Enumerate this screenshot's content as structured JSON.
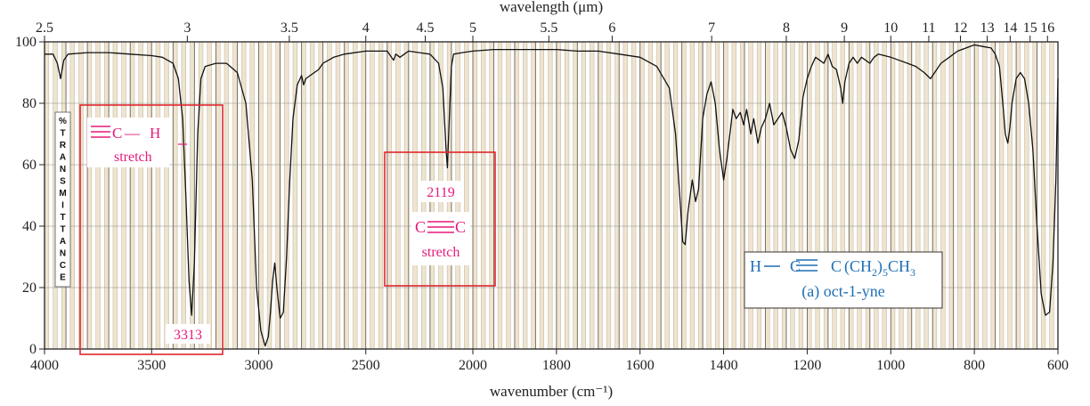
{
  "chart_data": {
    "type": "line",
    "title": "",
    "top_axis": {
      "label": "wavelength (μm)",
      "ticks": [
        "2.5",
        "3",
        "3.5",
        "4",
        "4.5",
        "5",
        "5.5",
        "6",
        "7",
        "8",
        "9",
        "10",
        "11",
        "12",
        "13",
        "14",
        "15",
        "16"
      ],
      "tick_values_um": [
        2.5,
        3,
        3.5,
        4,
        4.5,
        5,
        5.5,
        6,
        7,
        8,
        9,
        10,
        11,
        12,
        13,
        14,
        15,
        16
      ]
    },
    "x_axis": {
      "label": "wavenumber (cm⁻¹)",
      "ticks": [
        "4000",
        "3500",
        "3000",
        "2500",
        "2000",
        "1800",
        "1600",
        "1400",
        "1200",
        "1000",
        "800",
        "600"
      ],
      "tick_values": [
        4000,
        3500,
        3000,
        2500,
        2000,
        1800,
        1600,
        1400,
        1200,
        1000,
        800,
        600
      ],
      "scale": "linear 4000–2000, expanded linear 2000–600"
    },
    "y_axis": {
      "label_letters": [
        "%",
        "T",
        "R",
        "A",
        "N",
        "S",
        "M",
        "I",
        "T",
        "T",
        "A",
        "N",
        "C",
        "E"
      ],
      "ticks": [
        "0",
        "20",
        "40",
        "60",
        "80",
        "100"
      ],
      "tick_values": [
        0,
        20,
        40,
        60,
        80,
        100
      ],
      "ylim": [
        0,
        100
      ]
    },
    "grid": true,
    "series": [
      {
        "points": [
          [
            4000,
            96
          ],
          [
            3960,
            96
          ],
          [
            3940,
            93
          ],
          [
            3925,
            88
          ],
          [
            3910,
            94
          ],
          [
            3890,
            96
          ],
          [
            3800,
            96.5
          ],
          [
            3700,
            96.5
          ],
          [
            3600,
            96
          ],
          [
            3500,
            95.5
          ],
          [
            3450,
            95
          ],
          [
            3400,
            93
          ],
          [
            3375,
            88
          ],
          [
            3355,
            75
          ],
          [
            3340,
            50
          ],
          [
            3325,
            22
          ],
          [
            3313,
            11
          ],
          [
            3300,
            28
          ],
          [
            3285,
            70
          ],
          [
            3270,
            88
          ],
          [
            3250,
            92
          ],
          [
            3200,
            93
          ],
          [
            3150,
            93
          ],
          [
            3100,
            90
          ],
          [
            3060,
            80
          ],
          [
            3030,
            55
          ],
          [
            3010,
            20
          ],
          [
            2990,
            6
          ],
          [
            2970,
            1
          ],
          [
            2955,
            4
          ],
          [
            2945,
            12
          ],
          [
            2935,
            22
          ],
          [
            2925,
            28
          ],
          [
            2915,
            20
          ],
          [
            2900,
            10
          ],
          [
            2885,
            12
          ],
          [
            2870,
            30
          ],
          [
            2855,
            55
          ],
          [
            2840,
            75
          ],
          [
            2820,
            86
          ],
          [
            2800,
            89
          ],
          [
            2790,
            86
          ],
          [
            2780,
            88
          ],
          [
            2760,
            89
          ],
          [
            2720,
            91
          ],
          [
            2700,
            93
          ],
          [
            2650,
            95
          ],
          [
            2600,
            96
          ],
          [
            2500,
            97
          ],
          [
            2450,
            97
          ],
          [
            2400,
            97
          ],
          [
            2380,
            95
          ],
          [
            2370,
            94
          ],
          [
            2360,
            96
          ],
          [
            2340,
            95
          ],
          [
            2320,
            96
          ],
          [
            2300,
            97
          ],
          [
            2250,
            96.5
          ],
          [
            2200,
            96
          ],
          [
            2160,
            93
          ],
          [
            2140,
            85
          ],
          [
            2125,
            65
          ],
          [
            2119,
            59
          ],
          [
            2112,
            72
          ],
          [
            2100,
            92
          ],
          [
            2090,
            96
          ],
          [
            2050,
            96.5
          ],
          [
            2000,
            97
          ],
          [
            1950,
            97.5
          ],
          [
            1900,
            97.5
          ],
          [
            1850,
            97.5
          ],
          [
            1800,
            97.5
          ],
          [
            1750,
            97
          ],
          [
            1700,
            97
          ],
          [
            1650,
            96
          ],
          [
            1600,
            95
          ],
          [
            1560,
            92
          ],
          [
            1530,
            85
          ],
          [
            1515,
            70
          ],
          [
            1505,
            50
          ],
          [
            1498,
            35
          ],
          [
            1492,
            34
          ],
          [
            1485,
            45
          ],
          [
            1475,
            55
          ],
          [
            1467,
            48
          ],
          [
            1460,
            52
          ],
          [
            1450,
            75
          ],
          [
            1440,
            83
          ],
          [
            1430,
            87
          ],
          [
            1420,
            80
          ],
          [
            1410,
            65
          ],
          [
            1400,
            55
          ],
          [
            1392,
            62
          ],
          [
            1385,
            70
          ],
          [
            1378,
            78
          ],
          [
            1370,
            75
          ],
          [
            1360,
            77
          ],
          [
            1352,
            73
          ],
          [
            1345,
            78
          ],
          [
            1335,
            70
          ],
          [
            1328,
            75
          ],
          [
            1318,
            67
          ],
          [
            1310,
            72
          ],
          [
            1300,
            75
          ],
          [
            1290,
            80
          ],
          [
            1280,
            73
          ],
          [
            1270,
            75
          ],
          [
            1260,
            77
          ],
          [
            1250,
            72
          ],
          [
            1240,
            65
          ],
          [
            1230,
            62
          ],
          [
            1220,
            68
          ],
          [
            1210,
            82
          ],
          [
            1200,
            88
          ],
          [
            1190,
            92
          ],
          [
            1180,
            95
          ],
          [
            1170,
            94
          ],
          [
            1160,
            93
          ],
          [
            1150,
            96
          ],
          [
            1140,
            92
          ],
          [
            1130,
            91
          ],
          [
            1120,
            85
          ],
          [
            1115,
            80
          ],
          [
            1110,
            87
          ],
          [
            1100,
            93
          ],
          [
            1090,
            95
          ],
          [
            1080,
            93
          ],
          [
            1070,
            95
          ],
          [
            1060,
            94
          ],
          [
            1050,
            93
          ],
          [
            1040,
            95
          ],
          [
            1030,
            96
          ],
          [
            1000,
            95
          ],
          [
            980,
            94
          ],
          [
            960,
            93
          ],
          [
            940,
            92
          ],
          [
            920,
            90
          ],
          [
            905,
            88
          ],
          [
            895,
            90
          ],
          [
            880,
            93
          ],
          [
            860,
            95
          ],
          [
            840,
            97
          ],
          [
            820,
            98
          ],
          [
            800,
            99
          ],
          [
            780,
            98.5
          ],
          [
            760,
            98
          ],
          [
            750,
            96
          ],
          [
            740,
            92
          ],
          [
            732,
            80
          ],
          [
            726,
            70
          ],
          [
            720,
            67
          ],
          [
            715,
            72
          ],
          [
            710,
            80
          ],
          [
            700,
            88
          ],
          [
            690,
            90
          ],
          [
            680,
            88
          ],
          [
            670,
            80
          ],
          [
            660,
            65
          ],
          [
            650,
            40
          ],
          [
            640,
            18
          ],
          [
            630,
            11
          ],
          [
            620,
            12
          ],
          [
            612,
            28
          ],
          [
            605,
            55
          ],
          [
            600,
            88
          ]
        ]
      }
    ],
    "annotations": [
      {
        "text": "3313"
      },
      {
        "text": "2119"
      },
      {
        "text_parts": [
          "C",
          "—",
          "H"
        ],
        "line2": "stretch"
      },
      {
        "text_parts": [
          "C",
          "C"
        ],
        "line2": "stretch"
      }
    ],
    "compound": {
      "formula_parts": [
        "H",
        "C",
        "C",
        "(CH",
        "2",
        ")",
        "5",
        "CH",
        "3"
      ],
      "name": "(a) oct-1-yne"
    },
    "colors": {
      "annotation_text": "#e6197a",
      "formula_text": "#1f6fb4",
      "box_outline": "#e0262e",
      "spectrum_line": "#111111",
      "band_stripe": "#efe4cf",
      "gridline_minor": "#b7a98f",
      "gridline_major": "#6d6256"
    }
  }
}
